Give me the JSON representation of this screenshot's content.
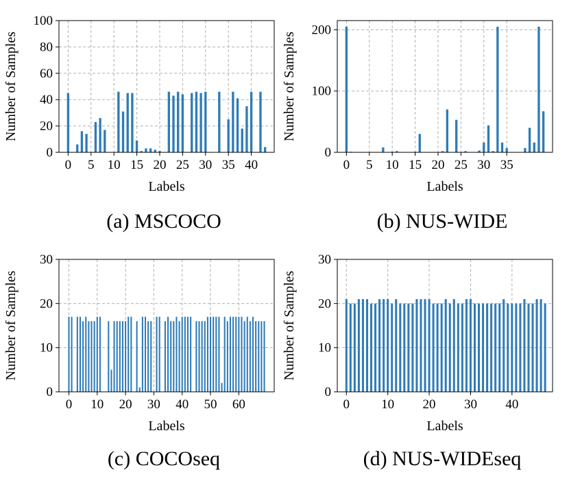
{
  "chart_data": [
    {
      "type": "bar",
      "title": "(a) MSCOCO",
      "xlabel": "Labels",
      "ylabel": "Number of Samples",
      "xlim": [
        -2,
        45
      ],
      "ylim": [
        0,
        100
      ],
      "yticks": [
        0,
        20,
        40,
        60,
        80,
        100
      ],
      "xticks": [
        0,
        5,
        10,
        15,
        20,
        25,
        30,
        35,
        40
      ],
      "grid": true,
      "color": "#2f7bb6",
      "x": [
        0,
        1,
        2,
        3,
        4,
        5,
        6,
        7,
        8,
        9,
        10,
        11,
        12,
        13,
        14,
        15,
        16,
        17,
        18,
        19,
        20,
        21,
        22,
        23,
        24,
        25,
        26,
        27,
        28,
        29,
        30,
        31,
        32,
        33,
        34,
        35,
        36,
        37,
        38,
        39,
        40,
        41,
        42,
        43
      ],
      "values": [
        45,
        0,
        6,
        16,
        14,
        0,
        23,
        26,
        17,
        0,
        0,
        46,
        31,
        45,
        45,
        9,
        1,
        3,
        3,
        2,
        1,
        0,
        46,
        43,
        46,
        44,
        0,
        45,
        46,
        45,
        46,
        0,
        0,
        46,
        0,
        25,
        46,
        41,
        18,
        35,
        46,
        0,
        46,
        4
      ]
    },
    {
      "type": "bar",
      "title": "(b) NUS-WIDE",
      "xlabel": "Labels",
      "ylabel": "Number of Samples",
      "xlim": [
        -2,
        45
      ],
      "ylim": [
        0,
        215
      ],
      "yticks": [
        0,
        100,
        200
      ],
      "xticks": [
        0,
        5,
        10,
        15,
        20,
        25,
        30,
        35
      ],
      "grid": true,
      "color": "#2f7bb6",
      "x": [
        0,
        1,
        2,
        3,
        4,
        5,
        6,
        7,
        8,
        9,
        10,
        11,
        12,
        13,
        14,
        15,
        16,
        17,
        18,
        19,
        20,
        21,
        22,
        23,
        24,
        25,
        26,
        27,
        28,
        29,
        30,
        31,
        32,
        33,
        34,
        35,
        36,
        37,
        38,
        39,
        40,
        41,
        42,
        43
      ],
      "values": [
        205,
        1,
        0,
        0,
        0,
        0,
        0,
        0,
        8,
        0,
        1,
        2,
        0,
        0,
        0,
        1,
        30,
        0,
        0,
        0,
        0,
        2,
        70,
        0,
        53,
        0,
        2,
        0,
        0,
        3,
        16,
        44,
        2,
        205,
        16,
        7,
        0,
        0,
        0,
        7,
        40,
        16,
        205,
        67
      ]
    },
    {
      "type": "bar",
      "title": "(c) COCOseq",
      "xlabel": "Labels",
      "ylabel": "Number of Samples",
      "xlim": [
        -3.5,
        72.5
      ],
      "ylim": [
        0,
        30
      ],
      "yticks": [
        0,
        10,
        20,
        30
      ],
      "xticks": [
        0,
        10,
        20,
        30,
        40,
        50,
        60
      ],
      "grid": true,
      "color": "#2f7bb6",
      "x": [
        0,
        1,
        2,
        3,
        4,
        5,
        6,
        7,
        8,
        9,
        10,
        11,
        12,
        13,
        14,
        15,
        16,
        17,
        18,
        19,
        20,
        21,
        22,
        23,
        24,
        25,
        26,
        27,
        28,
        29,
        30,
        31,
        32,
        33,
        34,
        35,
        36,
        37,
        38,
        39,
        40,
        41,
        42,
        43,
        44,
        45,
        46,
        47,
        48,
        49,
        50,
        51,
        52,
        53,
        54,
        55,
        56,
        57,
        58,
        59,
        60,
        61,
        62,
        63,
        64,
        65,
        66,
        67,
        68,
        69
      ],
      "values": [
        17,
        17,
        0,
        17,
        17,
        16,
        17,
        16,
        16,
        16,
        17,
        17,
        0,
        0,
        16,
        5,
        16,
        16,
        16,
        16,
        16,
        17,
        17,
        0,
        16,
        1,
        17,
        17,
        16,
        16,
        0,
        17,
        17,
        0,
        16,
        17,
        16,
        16,
        17,
        16,
        17,
        17,
        17,
        17,
        0,
        16,
        16,
        16,
        16,
        17,
        17,
        17,
        17,
        17,
        2,
        17,
        16,
        17,
        17,
        17,
        17,
        17,
        16,
        17,
        16,
        17,
        16,
        16,
        16,
        16
      ]
    },
    {
      "type": "bar",
      "title": "(d) NUS-WIDEseq",
      "xlabel": "Labels",
      "ylabel": "Number of Samples",
      "xlim": [
        -2.2,
        49.8
      ],
      "ylim": [
        0,
        30
      ],
      "yticks": [
        0,
        10,
        20,
        30
      ],
      "xticks": [
        0,
        10,
        20,
        30,
        40
      ],
      "grid": true,
      "color": "#2f7bb6",
      "x": [
        0,
        1,
        2,
        3,
        4,
        5,
        6,
        7,
        8,
        9,
        10,
        11,
        12,
        13,
        14,
        15,
        16,
        17,
        18,
        19,
        20,
        21,
        22,
        23,
        24,
        25,
        26,
        27,
        28,
        29,
        30,
        31,
        32,
        33,
        34,
        35,
        36,
        37,
        38,
        39,
        40,
        41,
        42,
        43,
        44,
        45,
        46,
        47,
        48
      ],
      "values": [
        21,
        20,
        20,
        21,
        21,
        21,
        20,
        20,
        21,
        21,
        21,
        20,
        21,
        20,
        20,
        20,
        20,
        21,
        21,
        21,
        21,
        20,
        20,
        20,
        21,
        20,
        21,
        20,
        20,
        21,
        21,
        20,
        20,
        20,
        20,
        20,
        20,
        20,
        21,
        20,
        20,
        20,
        20,
        21,
        20,
        20,
        21,
        21,
        20
      ]
    }
  ]
}
